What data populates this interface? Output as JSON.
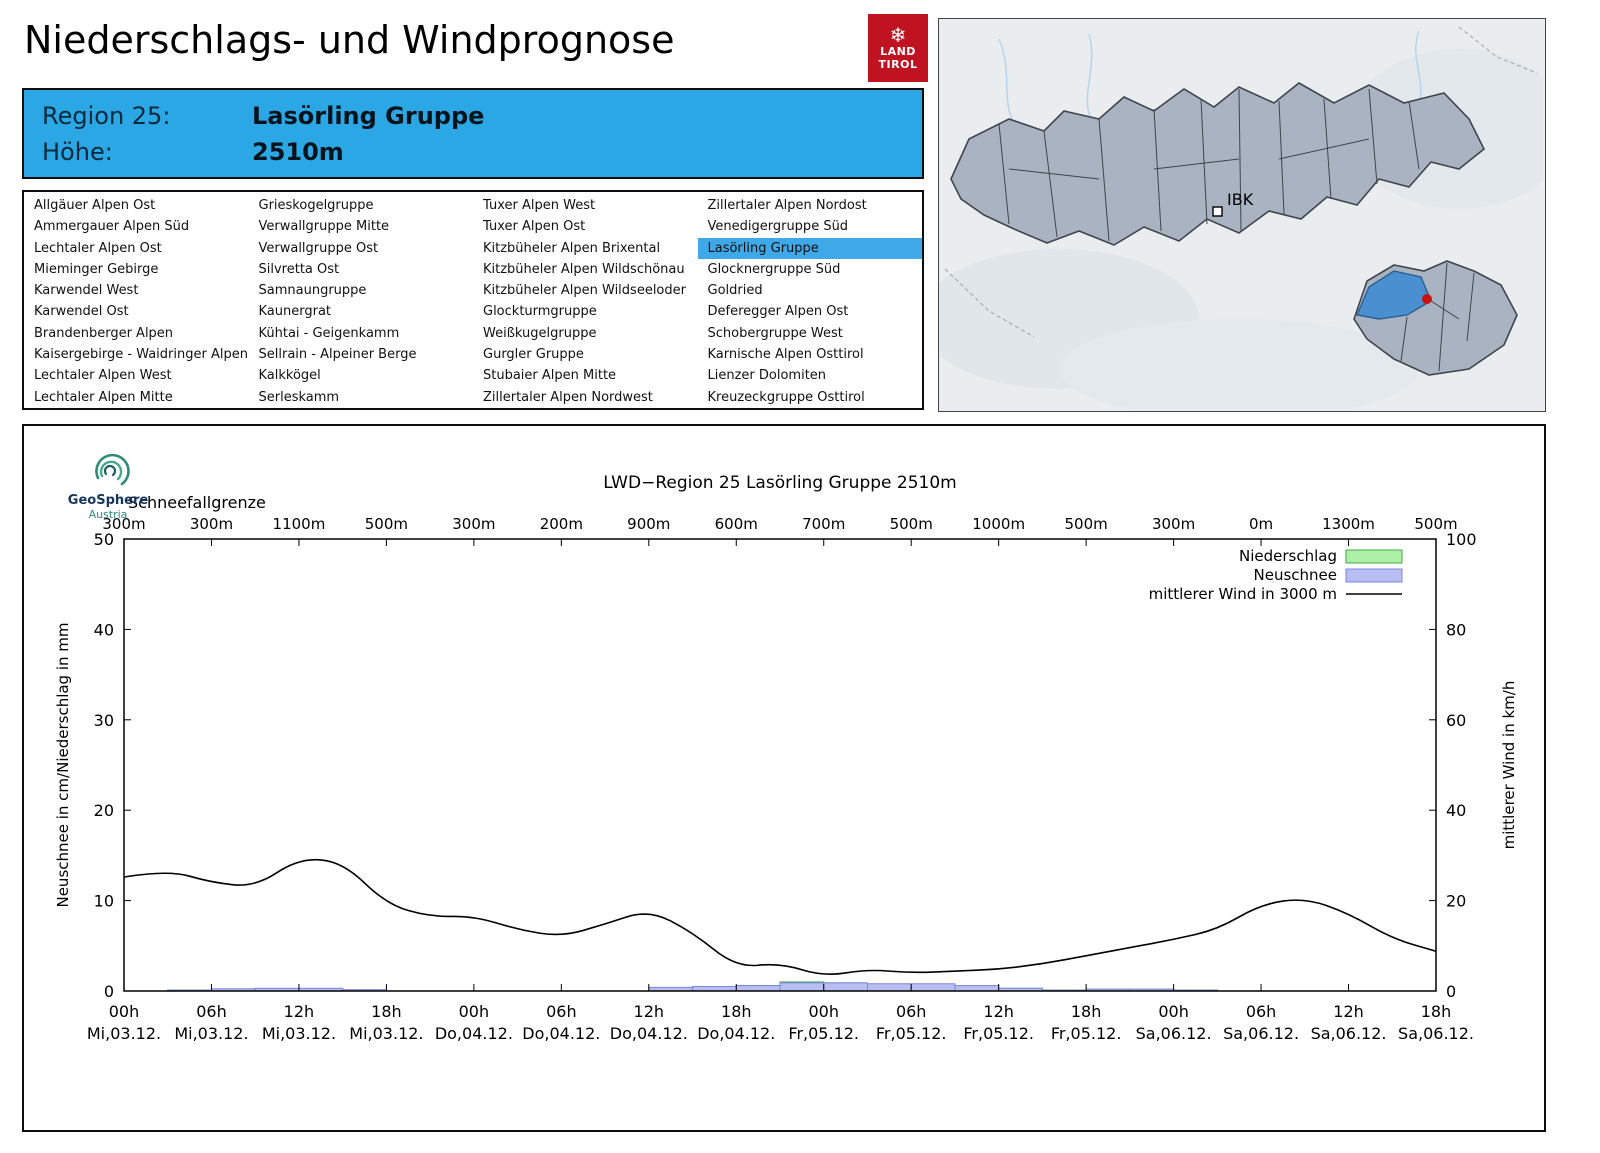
{
  "header": {
    "title": "Niederschlags- und Windprognose",
    "logo": {
      "snowflake": "❄",
      "line1": "LAND",
      "line2": "TIROL"
    }
  },
  "region_header": {
    "region_label": "Region 25:",
    "region_name": "Lasörling Gruppe",
    "altitude_label": "Höhe:",
    "altitude_value": "2510m"
  },
  "region_list": {
    "selected": "Lasörling Gruppe",
    "columns": [
      [
        "Allgäuer Alpen Ost",
        "Ammergauer Alpen Süd",
        "Lechtaler Alpen Ost",
        "Mieminger Gebirge",
        "Karwendel West",
        "Karwendel Ost",
        "Brandenberger Alpen",
        "Kaisergebirge - Waidringer Alpen",
        "Lechtaler Alpen West",
        "Lechtaler Alpen Mitte"
      ],
      [
        "Grieskogelgruppe",
        "Verwallgruppe Mitte",
        "Verwallgruppe Ost",
        "Silvretta Ost",
        "Samnaungruppe",
        "Kaunergrat",
        "Kühtai - Geigenkamm",
        "Sellrain - Alpeiner Berge",
        "Kalkkögel",
        "Serleskamm"
      ],
      [
        "Tuxer Alpen West",
        "Tuxer Alpen Ost",
        "Kitzbüheler Alpen Brixental",
        "Kitzbüheler Alpen Wildschönau",
        "Kitzbüheler Alpen Wildseeloder",
        "Glockturmgruppe",
        "Weißkugelgruppe",
        "Gurgler Gruppe",
        "Stubaier Alpen Mitte",
        "Zillertaler Alpen Nordwest"
      ],
      [
        "Zillertaler Alpen Nordost",
        "Venedigergruppe Süd",
        "Lasörling Gruppe",
        "Glocknergruppe Süd",
        "Goldried",
        "Deferegger Alpen Ost",
        "Schobergruppe West",
        "Karnische Alpen Osttirol",
        "Lienzer Dolomiten",
        "Kreuzeckgruppe Osttirol"
      ]
    ]
  },
  "map": {
    "city_label": "IBK",
    "highlight_color": "#4a8fd0",
    "marker_color": "#cc1111"
  },
  "branding": {
    "org": "GeoSphere",
    "country": "Austria"
  },
  "chart_data": {
    "type": "bar+line",
    "title": "LWD−Region 25 Lasörling Gruppe 2510m",
    "snowline": {
      "label": "Schneefallgrenze",
      "values": [
        "300m",
        "300m",
        "1100m",
        "500m",
        "300m",
        "200m",
        "900m",
        "600m",
        "700m",
        "500m",
        "1000m",
        "500m",
        "300m",
        "0m",
        "1300m",
        "500m"
      ]
    },
    "ylabel_left": "Neuschnee in cm/Niederschlag in mm",
    "ylabel_right": "mittlerer Wind in km/h",
    "ylim_left": [
      0,
      50
    ],
    "ylim_right": [
      0,
      100
    ],
    "yticks_left": [
      0,
      10,
      20,
      30,
      40,
      50
    ],
    "yticks_right": [
      0,
      20,
      40,
      60,
      80,
      100
    ],
    "x_hours_max": 90,
    "xticks": [
      {
        "time": "00h",
        "date": "Mi,03.12."
      },
      {
        "time": "06h",
        "date": "Mi,03.12."
      },
      {
        "time": "12h",
        "date": "Mi,03.12."
      },
      {
        "time": "18h",
        "date": "Mi,03.12."
      },
      {
        "time": "00h",
        "date": "Do,04.12."
      },
      {
        "time": "06h",
        "date": "Do,04.12."
      },
      {
        "time": "12h",
        "date": "Do,04.12."
      },
      {
        "time": "18h",
        "date": "Do,04.12."
      },
      {
        "time": "00h",
        "date": "Fr,05.12."
      },
      {
        "time": "06h",
        "date": "Fr,05.12."
      },
      {
        "time": "12h",
        "date": "Fr,05.12."
      },
      {
        "time": "18h",
        "date": "Fr,05.12."
      },
      {
        "time": "00h",
        "date": "Sa,06.12."
      },
      {
        "time": "06h",
        "date": "Sa,06.12."
      },
      {
        "time": "12h",
        "date": "Sa,06.12."
      },
      {
        "time": "18h",
        "date": "Sa,06.12."
      }
    ],
    "legend": [
      {
        "label": "Niederschlag",
        "swatch": "box",
        "fill": "#aef0a8",
        "stroke": "#3fae3f"
      },
      {
        "label": "Neuschnee",
        "swatch": "box",
        "fill": "#b9bef2",
        "stroke": "#7b86e0"
      },
      {
        "label": "mittlerer Wind in 3000 m",
        "swatch": "line",
        "stroke": "#000000"
      }
    ],
    "series": {
      "niederschlag_mm": {
        "interval_hours": 3,
        "values": [
          0,
          0.1,
          0.2,
          0.25,
          0.25,
          0.1,
          0,
          0,
          0,
          0,
          0,
          0,
          0.3,
          0.4,
          0.6,
          1.0,
          0.9,
          0.7,
          0.7,
          0.5,
          0.3,
          0.1,
          0.2,
          0.2,
          0.1,
          0,
          0,
          0,
          0,
          0
        ]
      },
      "neuschnee_cm": {
        "interval_hours": 3,
        "values": [
          0,
          0.1,
          0.25,
          0.3,
          0.3,
          0.15,
          0,
          0,
          0,
          0,
          0,
          0,
          0.4,
          0.5,
          0.6,
          0.9,
          0.9,
          0.8,
          0.8,
          0.6,
          0.3,
          0.1,
          0.2,
          0.2,
          0.1,
          0,
          0,
          0,
          0,
          0
        ]
      },
      "wind_kmh": {
        "step_hours": 3,
        "values": [
          25.2,
          26.8,
          24.0,
          23.0,
          29.4,
          28.6,
          19.2,
          16.4,
          16.6,
          13.6,
          12.0,
          14.8,
          18.0,
          13.0,
          5.2,
          6.2,
          3.2,
          4.8,
          4.0,
          4.4,
          4.8,
          6.0,
          7.8,
          9.6,
          11.4,
          13.6,
          19.2,
          20.6,
          17.2,
          11.6,
          8.8
        ]
      }
    }
  }
}
